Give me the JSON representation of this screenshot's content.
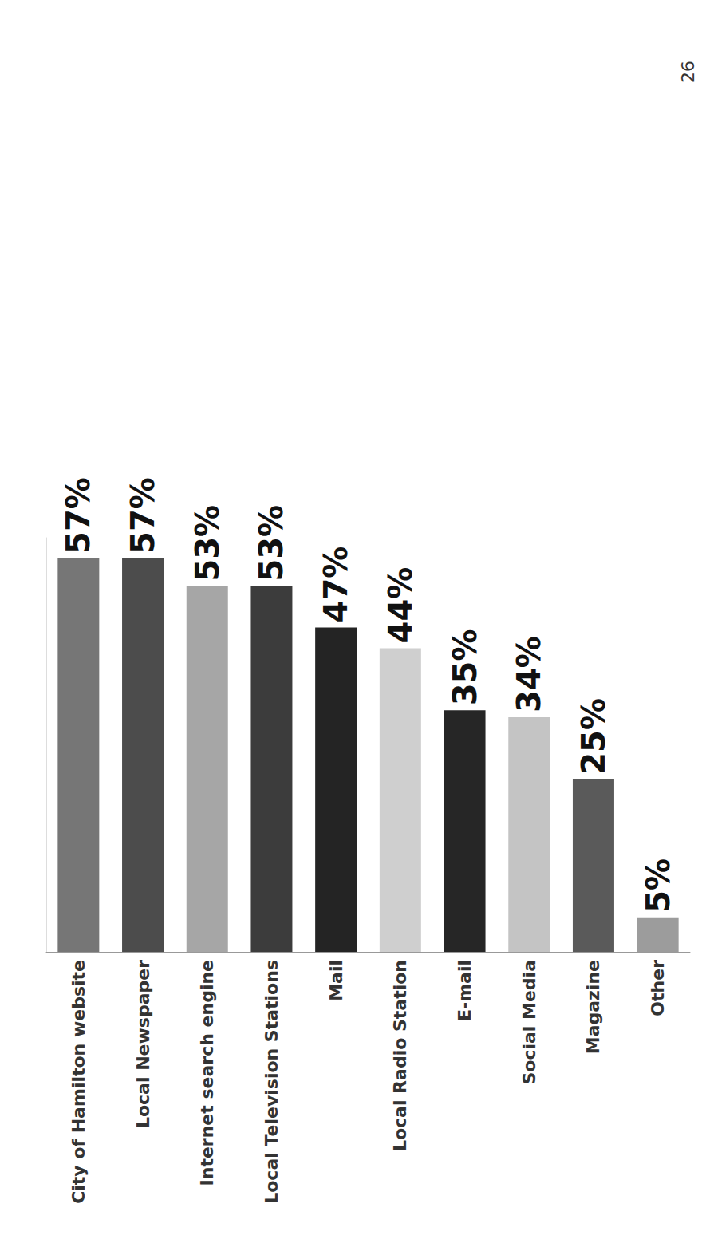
{
  "chart_data": {
    "type": "bar",
    "categories": [
      "City of Hamilton website",
      "Local Newspaper",
      "Internet search engine",
      "Local Television Stations",
      "Mail",
      "Local Radio Station",
      "E-mail",
      "Social Media",
      "Magazine",
      "Other"
    ],
    "values": [
      57,
      57,
      53,
      53,
      47,
      44,
      35,
      34,
      25,
      5
    ],
    "value_labels": [
      "57%",
      "57%",
      "53%",
      "53%",
      "47%",
      "44%",
      "35%",
      "34%",
      "25%",
      "5%"
    ],
    "colors": [
      "#767676",
      "#4c4c4c",
      "#a6a6a6",
      "#3c3c3c",
      "#242424",
      "#cfcfcf",
      "#262626",
      "#c4c4c4",
      "#5a5a5a",
      "#9c9c9c"
    ],
    "ylim": [
      0,
      60
    ],
    "data_labels": true,
    "tick_labels": "x",
    "grid": false,
    "annotation": "26"
  }
}
